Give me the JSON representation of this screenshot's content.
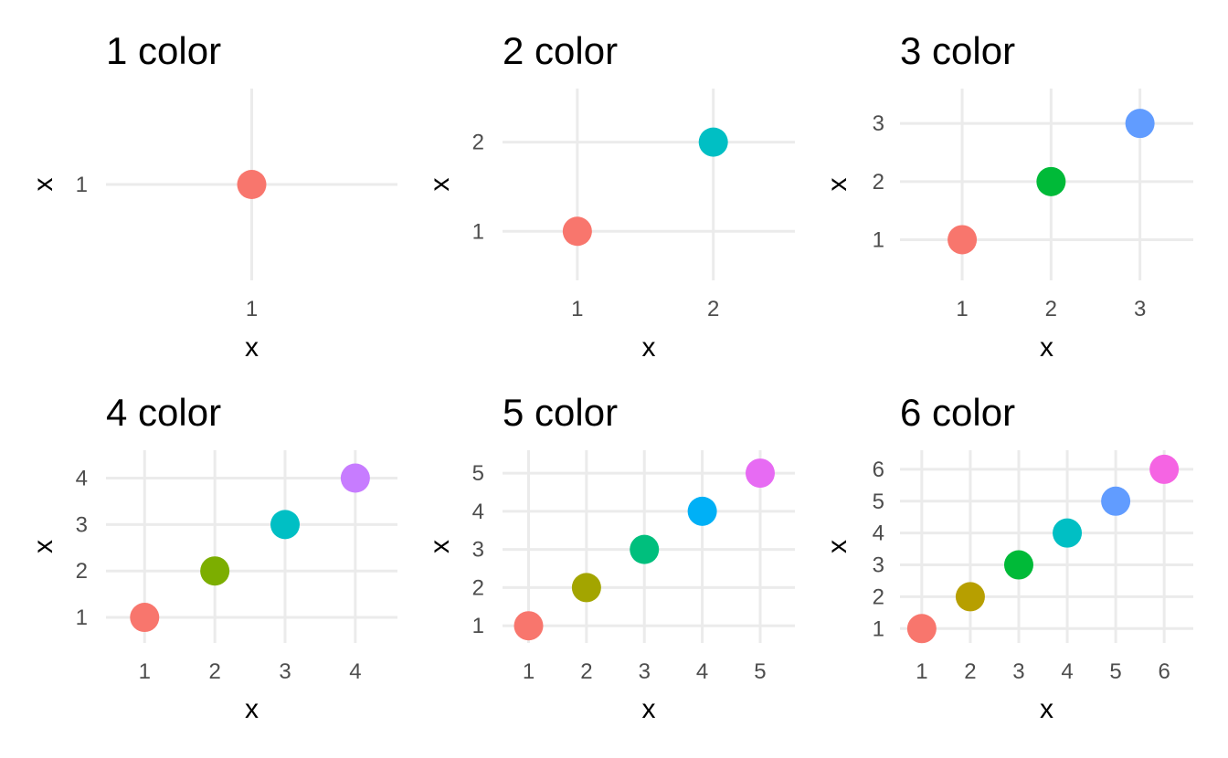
{
  "chart_data": [
    {
      "type": "scatter",
      "title": "1 color",
      "xlabel": "x",
      "ylabel": "x",
      "xlim": [
        0.4,
        1.6
      ],
      "ylim": [
        0.4,
        1.6
      ],
      "ticks": [
        1
      ],
      "grid": true,
      "legend": "none",
      "points": [
        {
          "x": 1,
          "y": 1,
          "color": "#F8766D"
        }
      ]
    },
    {
      "type": "scatter",
      "title": "2 color",
      "xlabel": "x",
      "ylabel": "x",
      "xlim": [
        0.45,
        2.6
      ],
      "ylim": [
        0.45,
        2.6
      ],
      "ticks": [
        1,
        2
      ],
      "grid": true,
      "legend": "none",
      "points": [
        {
          "x": 1,
          "y": 1,
          "color": "#F8766D"
        },
        {
          "x": 2,
          "y": 2,
          "color": "#00BFC4"
        }
      ]
    },
    {
      "type": "scatter",
      "title": "3 color",
      "xlabel": "x",
      "ylabel": "x",
      "xlim": [
        0.3,
        3.6
      ],
      "ylim": [
        0.3,
        3.6
      ],
      "ticks": [
        1,
        2,
        3
      ],
      "grid": true,
      "legend": "none",
      "points": [
        {
          "x": 1,
          "y": 1,
          "color": "#F8766D"
        },
        {
          "x": 2,
          "y": 2,
          "color": "#00BA38"
        },
        {
          "x": 3,
          "y": 3,
          "color": "#619CFF"
        }
      ]
    },
    {
      "type": "scatter",
      "title": "4 color",
      "xlabel": "x",
      "ylabel": "x",
      "xlim": [
        0.45,
        4.6
      ],
      "ylim": [
        0.45,
        4.6
      ],
      "ticks": [
        1,
        2,
        3,
        4
      ],
      "grid": true,
      "legend": "none",
      "points": [
        {
          "x": 1,
          "y": 1,
          "color": "#F8766D"
        },
        {
          "x": 2,
          "y": 2,
          "color": "#7CAE00"
        },
        {
          "x": 3,
          "y": 3,
          "color": "#00BFC4"
        },
        {
          "x": 4,
          "y": 4,
          "color": "#C77CFF"
        }
      ]
    },
    {
      "type": "scatter",
      "title": "5 color",
      "xlabel": "x",
      "ylabel": "x",
      "xlim": [
        0.55,
        5.6
      ],
      "ylim": [
        0.55,
        5.6
      ],
      "ticks": [
        1,
        2,
        3,
        4,
        5
      ],
      "grid": true,
      "legend": "none",
      "points": [
        {
          "x": 1,
          "y": 1,
          "color": "#F8766D"
        },
        {
          "x": 2,
          "y": 2,
          "color": "#A3A500"
        },
        {
          "x": 3,
          "y": 3,
          "color": "#00BF7D"
        },
        {
          "x": 4,
          "y": 4,
          "color": "#00B0F6"
        },
        {
          "x": 5,
          "y": 5,
          "color": "#E76BF3"
        }
      ]
    },
    {
      "type": "scatter",
      "title": "6 color",
      "xlabel": "x",
      "ylabel": "x",
      "xlim": [
        0.55,
        6.6
      ],
      "ylim": [
        0.55,
        6.6
      ],
      "ticks": [
        1,
        2,
        3,
        4,
        5,
        6
      ],
      "grid": true,
      "legend": "none",
      "points": [
        {
          "x": 1,
          "y": 1,
          "color": "#F8766D"
        },
        {
          "x": 2,
          "y": 2,
          "color": "#B79F00"
        },
        {
          "x": 3,
          "y": 3,
          "color": "#00BA38"
        },
        {
          "x": 4,
          "y": 4,
          "color": "#00BFC4"
        },
        {
          "x": 5,
          "y": 5,
          "color": "#619CFF"
        },
        {
          "x": 6,
          "y": 6,
          "color": "#F564E3"
        }
      ]
    }
  ]
}
